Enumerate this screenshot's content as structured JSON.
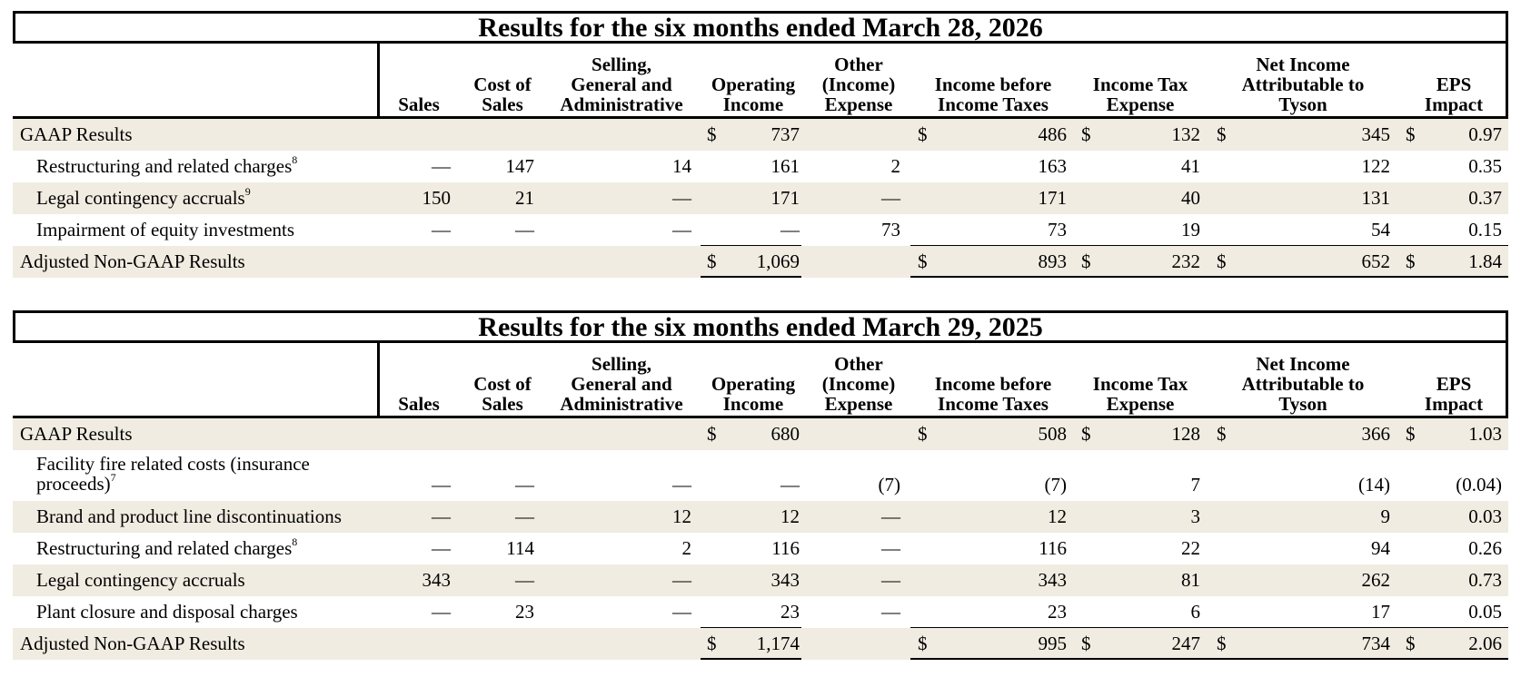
{
  "headers": [
    "Sales",
    "Cost of\nSales",
    "Selling,\nGeneral and\nAdministrative",
    "Operating\nIncome",
    "Other\n(Income)\nExpense",
    "Income before\nIncome Taxes",
    "Income Tax\nExpense",
    "Net Income\nAttributable to\nTyson",
    "EPS\nImpact"
  ],
  "tables": [
    {
      "title": "Results for the six months ended March 28, 2026",
      "rows": [
        {
          "label": "GAAP Results",
          "sup": "",
          "indent": false,
          "shade": true,
          "values": [
            "",
            "",
            "",
            "737",
            "",
            "486",
            "132",
            "345",
            "0.97"
          ],
          "dollars": [
            false,
            false,
            false,
            true,
            false,
            true,
            true,
            true,
            true
          ]
        },
        {
          "label": "Restructuring and related charges",
          "sup": "8",
          "indent": true,
          "shade": false,
          "values": [
            "—",
            "147",
            "14",
            "161",
            "2",
            "163",
            "41",
            "122",
            "0.35"
          ],
          "dollars": [
            false,
            false,
            false,
            false,
            false,
            false,
            false,
            false,
            false
          ]
        },
        {
          "label": "Legal contingency accruals",
          "sup": "9",
          "indent": true,
          "shade": true,
          "values": [
            "150",
            "21",
            "—",
            "171",
            "—",
            "171",
            "40",
            "131",
            "0.37"
          ],
          "dollars": [
            false,
            false,
            false,
            false,
            false,
            false,
            false,
            false,
            false
          ]
        },
        {
          "label": "Impairment of equity investments",
          "sup": "",
          "indent": true,
          "shade": false,
          "values": [
            "—",
            "—",
            "—",
            "—",
            "73",
            "73",
            "19",
            "54",
            "0.15"
          ],
          "dollars": [
            false,
            false,
            false,
            false,
            false,
            false,
            false,
            false,
            false
          ]
        },
        {
          "label": "Adjusted Non-GAAP Results",
          "sup": "",
          "indent": false,
          "shade": true,
          "values": [
            "",
            "",
            "",
            "1,069",
            "",
            "893",
            "232",
            "652",
            "1.84"
          ],
          "dollars": [
            false,
            false,
            false,
            true,
            false,
            true,
            true,
            true,
            true
          ]
        }
      ]
    },
    {
      "title": "Results for the six months ended March 29, 2025",
      "rows": [
        {
          "label": "GAAP Results",
          "sup": "",
          "indent": false,
          "shade": true,
          "values": [
            "",
            "",
            "",
            "680",
            "",
            "508",
            "128",
            "366",
            "1.03"
          ],
          "dollars": [
            false,
            false,
            false,
            true,
            false,
            true,
            true,
            true,
            true
          ]
        },
        {
          "label": "Facility fire related costs (insurance\nproceeds)",
          "sup": "7",
          "indent": true,
          "shade": false,
          "tall": true,
          "values": [
            "—",
            "—",
            "—",
            "—",
            "(7)",
            "(7)",
            "7",
            "(14)",
            "(0.04)"
          ],
          "dollars": [
            false,
            false,
            false,
            false,
            false,
            false,
            false,
            false,
            false
          ]
        },
        {
          "label": "Brand and product line discontinuations",
          "sup": "",
          "indent": true,
          "shade": true,
          "values": [
            "—",
            "—",
            "12",
            "12",
            "—",
            "12",
            "3",
            "9",
            "0.03"
          ],
          "dollars": [
            false,
            false,
            false,
            false,
            false,
            false,
            false,
            false,
            false
          ]
        },
        {
          "label": "Restructuring and related charges",
          "sup": "8",
          "indent": true,
          "shade": false,
          "values": [
            "—",
            "114",
            "2",
            "116",
            "—",
            "116",
            "22",
            "94",
            "0.26"
          ],
          "dollars": [
            false,
            false,
            false,
            false,
            false,
            false,
            false,
            false,
            false
          ]
        },
        {
          "label": "Legal contingency accruals",
          "sup": "",
          "indent": true,
          "shade": true,
          "values": [
            "343",
            "—",
            "—",
            "343",
            "—",
            "343",
            "81",
            "262",
            "0.73"
          ],
          "dollars": [
            false,
            false,
            false,
            false,
            false,
            false,
            false,
            false,
            false
          ]
        },
        {
          "label": "Plant closure and disposal charges",
          "sup": "",
          "indent": true,
          "shade": false,
          "values": [
            "—",
            "23",
            "—",
            "23",
            "—",
            "23",
            "6",
            "17",
            "0.05"
          ],
          "dollars": [
            false,
            false,
            false,
            false,
            false,
            false,
            false,
            false,
            false
          ]
        },
        {
          "label": "Adjusted Non-GAAP Results",
          "sup": "",
          "indent": false,
          "shade": true,
          "values": [
            "",
            "",
            "",
            "1,174",
            "",
            "995",
            "247",
            "734",
            "2.06"
          ],
          "dollars": [
            false,
            false,
            false,
            true,
            false,
            true,
            true,
            true,
            true
          ]
        }
      ]
    }
  ]
}
